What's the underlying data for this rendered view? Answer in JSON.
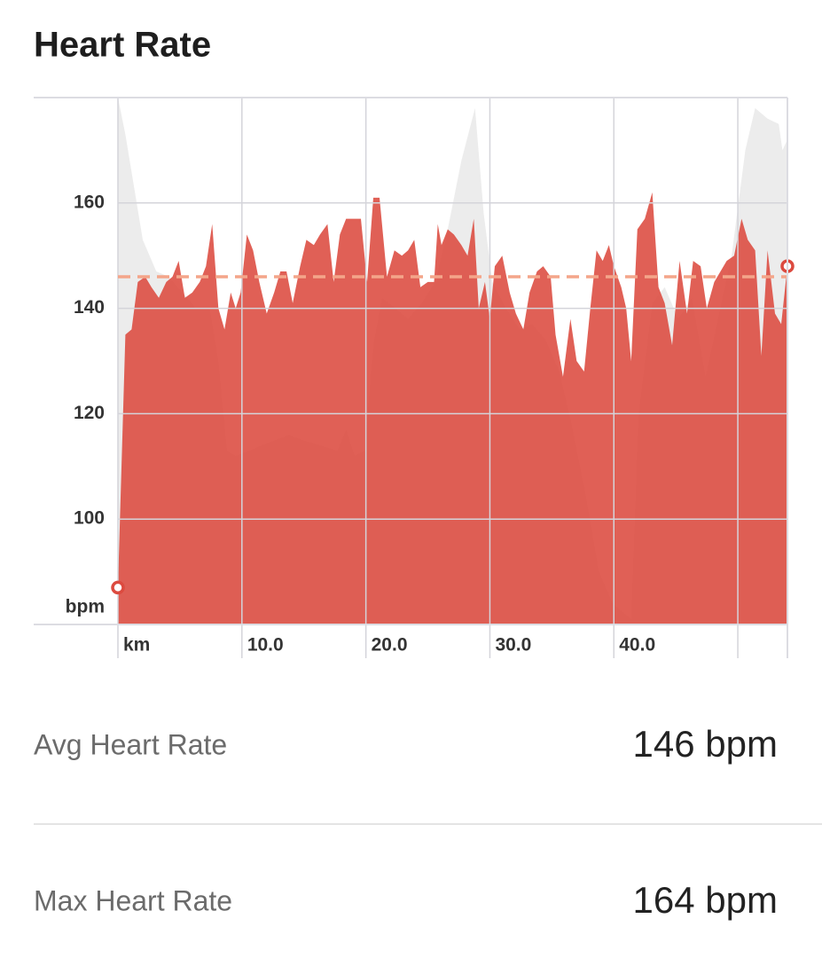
{
  "title": "Heart Rate",
  "chart_data": {
    "type": "area",
    "y_unit": "bpm",
    "xlim": [
      0,
      54
    ],
    "ylim": [
      80,
      180
    ],
    "yticks": [
      100,
      120,
      140,
      160
    ],
    "xticks": [
      {
        "value": 0,
        "label": "km"
      },
      {
        "value": 10,
        "label": "10.0"
      },
      {
        "value": 20,
        "label": "20.0"
      },
      {
        "value": 30,
        "label": "30.0"
      },
      {
        "value": 40,
        "label": "40.0"
      },
      {
        "value": 50,
        "label": null
      }
    ],
    "grid": true,
    "avg_line": 146,
    "avg_color": "#f4a58a",
    "series": [
      {
        "color": "#ececec",
        "x": [
          0,
          0.6,
          1.3,
          2.0,
          3.1,
          4.1,
          5.2,
          6.3,
          7.4,
          8.1,
          8.8,
          9.5,
          10.6,
          11.6,
          12.7,
          13.8,
          14.9,
          16.3,
          17.7,
          18.4,
          19.1,
          19.9,
          20.6,
          21.3,
          22.4,
          23.4,
          24.5,
          25.6,
          26.6,
          27.7,
          28.8,
          29.5,
          30.2,
          31.3,
          32.4,
          33.4,
          34.5,
          35.6,
          36.6,
          37.7,
          38.8,
          39.9,
          40.9,
          41.4,
          42.0,
          43.1,
          44.1,
          45.2,
          46.3,
          47.4,
          48.4,
          49.5,
          50.6,
          51.4,
          52.4,
          53.3,
          53.6,
          54.0
        ],
        "values": [
          180,
          173,
          163,
          153,
          147,
          146,
          143,
          140,
          140,
          130,
          113,
          112,
          113,
          114,
          115,
          116,
          115,
          114,
          113,
          117,
          112,
          113,
          133,
          142,
          140,
          138,
          141,
          145,
          155,
          168,
          178,
          158,
          145,
          140,
          136,
          137,
          134,
          128,
          118,
          105,
          90,
          84,
          82,
          81,
          120,
          141,
          144,
          138,
          142,
          127,
          138,
          150,
          170,
          178,
          176,
          175,
          170,
          172
        ]
      },
      {
        "color": "#dc4a3f",
        "x": [
          0,
          0.6,
          1.1,
          1.6,
          2.2,
          2.7,
          3.3,
          3.9,
          4.4,
          4.9,
          5.4,
          6.0,
          6.6,
          7.1,
          7.6,
          8.1,
          8.6,
          9.1,
          9.5,
          9.9,
          10.4,
          10.9,
          11.4,
          12.0,
          12.6,
          13.1,
          13.6,
          14.1,
          14.7,
          15.2,
          15.8,
          16.3,
          16.9,
          17.4,
          17.9,
          18.4,
          19.0,
          19.6,
          20.1,
          20.6,
          21.1,
          21.7,
          22.3,
          22.9,
          23.4,
          23.9,
          24.4,
          25.0,
          25.5,
          25.8,
          26.1,
          26.6,
          27.1,
          27.7,
          28.2,
          28.7,
          29.1,
          29.6,
          30.0,
          30.4,
          31.0,
          31.6,
          32.1,
          32.7,
          33.2,
          33.8,
          34.3,
          34.9,
          35.3,
          35.9,
          36.5,
          37.0,
          37.6,
          38.1,
          38.6,
          39.1,
          39.6,
          40.0,
          40.6,
          41.0,
          41.4,
          41.9,
          42.5,
          43.1,
          43.6,
          44.1,
          44.7,
          45.3,
          45.9,
          46.4,
          47.0,
          47.5,
          48.1,
          48.6,
          49.1,
          49.7,
          50.3,
          50.8,
          51.4,
          51.9,
          52.4,
          53.0,
          53.5,
          54.0
        ],
        "values": [
          87,
          135,
          136,
          145,
          146,
          144,
          142,
          145,
          146,
          149,
          142,
          143,
          145,
          148,
          156,
          140,
          136,
          143,
          140,
          143,
          154,
          151,
          145,
          139,
          143,
          147,
          147,
          141,
          148,
          153,
          152,
          154,
          156,
          145,
          154,
          157,
          157,
          157,
          145,
          161,
          161,
          146,
          151,
          150,
          151,
          153,
          144,
          145,
          145,
          156,
          152,
          155,
          154,
          152,
          150,
          157,
          140,
          145,
          138,
          148,
          150,
          143,
          139,
          136,
          143,
          147,
          148,
          146,
          135,
          127,
          138,
          130,
          128,
          140,
          151,
          149,
          152,
          148,
          144,
          140,
          130,
          155,
          157,
          162,
          144,
          141,
          133,
          149,
          139,
          149,
          148,
          140,
          145,
          147,
          149,
          150,
          157,
          153,
          151,
          131,
          151,
          139,
          137,
          148
        ]
      }
    ]
  },
  "stats": [
    {
      "label": "Avg Heart Rate",
      "value": "146 bpm"
    },
    {
      "label": "Max Heart Rate",
      "value": "164 bpm"
    }
  ]
}
